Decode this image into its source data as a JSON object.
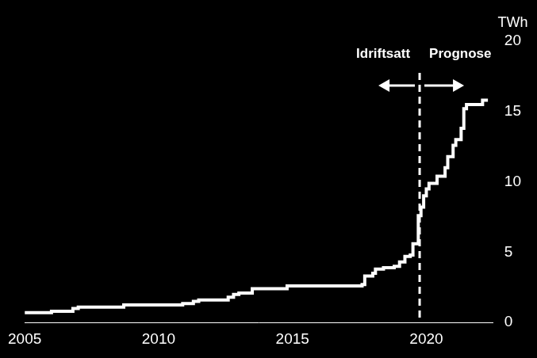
{
  "chart_data": {
    "type": "line",
    "line_style": "step",
    "color": "#ffffff",
    "grid": false,
    "y_unit_label": "TWh",
    "x": [
      2005.0,
      2006.0,
      2006.8,
      2007.0,
      2008.7,
      2010.9,
      2011.3,
      2011.5,
      2012.6,
      2012.8,
      2013.0,
      2013.5,
      2014.8,
      2017.6,
      2017.7,
      2018.0,
      2018.1,
      2018.4,
      2018.8,
      2019.0,
      2019.2,
      2019.4,
      2019.5,
      2019.7,
      2019.8,
      2019.9,
      2020.0,
      2020.1,
      2020.4,
      2020.7,
      2020.8,
      2021.0,
      2021.1,
      2021.3,
      2021.4,
      2021.5,
      2022.1,
      2022.3
    ],
    "values": [
      0.7,
      0.8,
      1.0,
      1.1,
      1.25,
      1.35,
      1.5,
      1.6,
      1.8,
      2.0,
      2.1,
      2.4,
      2.6,
      2.7,
      3.3,
      3.5,
      3.8,
      3.9,
      4.0,
      4.3,
      4.7,
      4.8,
      5.6,
      7.6,
      8.2,
      9.0,
      9.5,
      9.9,
      10.4,
      11.0,
      11.8,
      12.6,
      13.0,
      13.8,
      15.2,
      15.5,
      15.8,
      15.8
    ],
    "xlim": [
      2005,
      2022.5
    ],
    "xticks": [
      2005,
      2010,
      2015,
      2020
    ],
    "ylim": [
      0,
      20
    ],
    "yticks": [
      0,
      5,
      10,
      15,
      20
    ],
    "divider": {
      "x": 2019.75,
      "left_label": "Idriftsatt",
      "right_label": "Prognose"
    }
  }
}
